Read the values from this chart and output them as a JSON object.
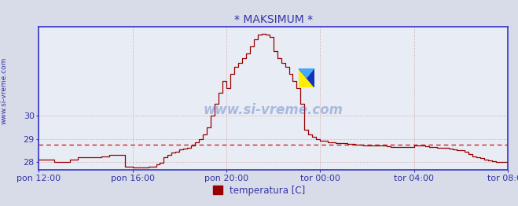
{
  "title": "* MAKSIMUM *",
  "ylabel_side": "www.si-vreme.com",
  "watermark": "www.si-vreme.com",
  "legend_label": "temperatura [C]",
  "bg_color": "#d8dce8",
  "plot_bg_color": "#e8ecf4",
  "line_color": "#990000",
  "dashed_line_color": "#cc2222",
  "dashed_line_value": 28.75,
  "ylim": [
    27.65,
    33.85
  ],
  "yticks": [
    28,
    29,
    30
  ],
  "tick_label_color": "#3333aa",
  "title_color": "#3333aa",
  "grid_color": "#cc9999",
  "grid_minor_color": "#ddbbbb",
  "axis_color": "#3333cc",
  "x_labels": [
    "pon 12:00",
    "pon 16:00",
    "pon 20:00",
    "tor 00:00",
    "tor 04:00",
    "tor 08:00"
  ],
  "x_positions": [
    0,
    48,
    96,
    144,
    192,
    240
  ],
  "time_data": [
    0,
    2,
    4,
    6,
    8,
    10,
    12,
    14,
    16,
    18,
    20,
    22,
    24,
    26,
    28,
    30,
    32,
    34,
    36,
    38,
    40,
    42,
    44,
    46,
    48,
    50,
    52,
    54,
    56,
    58,
    60,
    62,
    64,
    66,
    68,
    70,
    72,
    74,
    76,
    78,
    80,
    82,
    84,
    86,
    88,
    90,
    92,
    94,
    96,
    98,
    100,
    102,
    104,
    106,
    108,
    110,
    112,
    114,
    116,
    118,
    120,
    122,
    124,
    126,
    128,
    130,
    132,
    134,
    136,
    138,
    140,
    142,
    144,
    146,
    148,
    150,
    152,
    154,
    156,
    158,
    160,
    162,
    164,
    166,
    168,
    170,
    172,
    174,
    176,
    178,
    180,
    182,
    184,
    186,
    188,
    190,
    192,
    194,
    196,
    198,
    200,
    202,
    204,
    206,
    208,
    210,
    212,
    214,
    216,
    218,
    220,
    222,
    224,
    226,
    228,
    230,
    232,
    234,
    236,
    238,
    240
  ],
  "temp_data": [
    28.1,
    28.1,
    28.1,
    28.1,
    28.0,
    28.0,
    28.0,
    28.0,
    28.1,
    28.1,
    28.2,
    28.2,
    28.2,
    28.2,
    28.2,
    28.2,
    28.25,
    28.25,
    28.3,
    28.3,
    28.3,
    28.3,
    27.8,
    27.8,
    27.75,
    27.75,
    27.75,
    27.75,
    27.8,
    27.8,
    27.9,
    27.95,
    28.2,
    28.3,
    28.4,
    28.45,
    28.55,
    28.58,
    28.62,
    28.7,
    28.85,
    29.0,
    29.2,
    29.5,
    30.0,
    30.5,
    31.0,
    31.5,
    31.2,
    31.8,
    32.1,
    32.3,
    32.5,
    32.7,
    33.0,
    33.3,
    33.5,
    33.55,
    33.5,
    33.4,
    32.8,
    32.5,
    32.3,
    32.1,
    31.8,
    31.5,
    31.2,
    30.5,
    29.4,
    29.2,
    29.1,
    29.0,
    28.9,
    28.9,
    28.85,
    28.85,
    28.82,
    28.8,
    28.8,
    28.78,
    28.78,
    28.75,
    28.75,
    28.72,
    28.7,
    28.72,
    28.72,
    28.72,
    28.7,
    28.68,
    28.65,
    28.65,
    28.65,
    28.65,
    28.65,
    28.65,
    28.7,
    28.72,
    28.72,
    28.68,
    28.65,
    28.65,
    28.62,
    28.6,
    28.6,
    28.58,
    28.55,
    28.5,
    28.5,
    28.45,
    28.35,
    28.25,
    28.2,
    28.15,
    28.1,
    28.05,
    28.02,
    28.0,
    28.0,
    28.0,
    28.0
  ]
}
